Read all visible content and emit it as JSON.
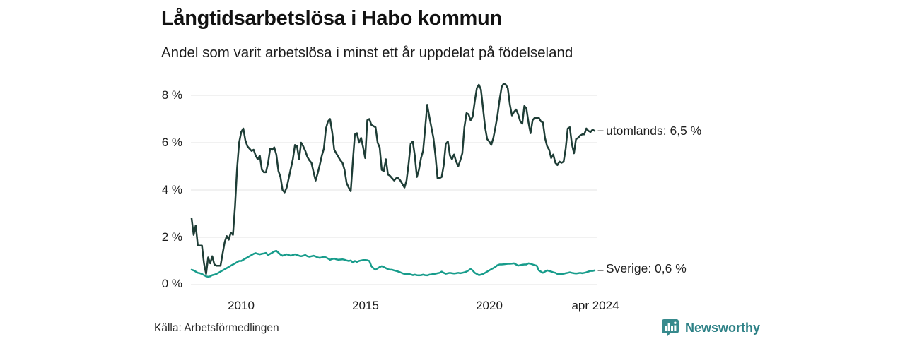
{
  "page": {
    "title": "Långtidsarbetslösa i Habo kommun",
    "subtitle": "Andel som varit arbetslösa i minst ett år uppdelat på födelseland",
    "source": "Källa: Arbetsförmedlingen",
    "brand": {
      "name": "Newsworthy",
      "icon": "newsworthy-speech-bubble-bar-chart",
      "icon_color": "#378a8d",
      "text_color": "#2d8186"
    }
  },
  "chart_data": {
    "type": "line",
    "title": "Långtidsarbetslösa i Habo kommun",
    "subtitle": "Andel som varit arbetslösa i minst ett år uppdelat på födelseland",
    "x_unit": "month",
    "x_start": "2008-01",
    "x_end": "2024-04",
    "ylim": [
      0,
      8.6
    ],
    "grid": "horizontal-only",
    "grid_color": "#e3e3e3",
    "legend_position": "end-of-line-labels",
    "y_tick_values": [
      0,
      2,
      4,
      6,
      8
    ],
    "y_tick_labels": [
      "0 %",
      "2 %",
      "4 %",
      "6 %",
      "8 %"
    ],
    "x_ticks": [
      {
        "label": "2010",
        "month_index": 24
      },
      {
        "label": "2015",
        "month_index": 84
      },
      {
        "label": "2020",
        "month_index": 144
      },
      {
        "label": "apr 2024",
        "month_index": 195
      }
    ],
    "series": [
      {
        "name": "utomlands",
        "label": "utomlands: 6,5 %",
        "latest_value": 6.5,
        "color": "#1e3d36",
        "values": [
          2.8,
          2.1,
          2.5,
          1.65,
          1.65,
          1.65,
          0.9,
          0.45,
          1.15,
          0.9,
          1.2,
          0.85,
          0.8,
          0.8,
          0.8,
          1.3,
          1.8,
          2.05,
          1.9,
          2.2,
          2.1,
          3.3,
          4.9,
          6.0,
          6.45,
          6.6,
          6.1,
          5.85,
          5.75,
          5.65,
          5.7,
          5.45,
          5.3,
          5.45,
          4.85,
          4.75,
          4.75,
          5.15,
          5.75,
          5.7,
          5.8,
          5.5,
          4.8,
          4.55,
          4.0,
          3.9,
          4.1,
          4.5,
          4.9,
          5.3,
          5.9,
          5.85,
          5.3,
          6.0,
          5.85,
          5.65,
          5.4,
          5.25,
          5.15,
          4.75,
          4.4,
          4.7,
          5.05,
          5.45,
          5.75,
          6.6,
          6.9,
          7.0,
          6.45,
          5.7,
          5.55,
          5.4,
          5.25,
          5.15,
          4.85,
          4.3,
          4.1,
          3.95,
          5.2,
          6.35,
          6.4,
          6.0,
          6.2,
          5.8,
          5.35,
          6.95,
          7.0,
          6.75,
          6.7,
          6.65,
          6.0,
          5.8,
          4.85,
          4.8,
          5.3,
          4.65,
          4.6,
          4.5,
          4.4,
          4.5,
          4.5,
          4.4,
          4.25,
          4.1,
          4.4,
          5.1,
          5.95,
          6.05,
          5.45,
          4.55,
          4.85,
          5.35,
          5.65,
          6.6,
          7.6,
          7.1,
          6.65,
          6.2,
          5.45,
          4.5,
          4.5,
          4.55,
          5.05,
          5.95,
          6.05,
          5.45,
          5.3,
          5.5,
          5.2,
          5.0,
          5.25,
          5.55,
          6.65,
          7.25,
          7.2,
          6.95,
          7.1,
          7.75,
          8.3,
          8.45,
          8.25,
          7.45,
          6.65,
          6.15,
          6.05,
          5.9,
          6.2,
          6.65,
          7.15,
          7.8,
          8.35,
          8.5,
          8.45,
          8.3,
          7.6,
          7.15,
          7.3,
          7.4,
          7.2,
          6.9,
          6.8,
          7.55,
          7.45,
          6.85,
          6.4,
          6.95,
          7.05,
          7.05,
          7.05,
          6.9,
          6.85,
          6.2,
          5.85,
          5.7,
          5.35,
          5.5,
          5.15,
          5.05,
          5.2,
          5.15,
          5.2,
          5.75,
          6.6,
          6.65,
          5.95,
          5.55,
          6.15,
          6.2,
          6.3,
          6.35,
          6.35,
          6.6,
          6.5,
          6.45,
          6.55,
          6.5
        ]
      },
      {
        "name": "Sverige",
        "label": "Sverige: 0,6 %",
        "latest_value": 0.6,
        "color": "#179c8b",
        "values": [
          0.63,
          0.6,
          0.55,
          0.5,
          0.48,
          0.45,
          0.4,
          0.35,
          0.33,
          0.35,
          0.4,
          0.42,
          0.45,
          0.5,
          0.55,
          0.6,
          0.65,
          0.7,
          0.75,
          0.8,
          0.85,
          0.9,
          0.95,
          1.0,
          1.0,
          1.05,
          1.1,
          1.15,
          1.2,
          1.25,
          1.3,
          1.33,
          1.3,
          1.28,
          1.3,
          1.32,
          1.34,
          1.25,
          1.3,
          1.35,
          1.4,
          1.43,
          1.35,
          1.27,
          1.22,
          1.25,
          1.28,
          1.25,
          1.22,
          1.25,
          1.28,
          1.25,
          1.22,
          1.2,
          1.22,
          1.25,
          1.2,
          1.18,
          1.2,
          1.22,
          1.19,
          1.15,
          1.13,
          1.15,
          1.18,
          1.15,
          1.1,
          1.05,
          1.08,
          1.1,
          1.07,
          1.05,
          1.06,
          1.07,
          1.05,
          1.02,
          1.0,
          1.02,
          0.93,
          1.0,
          0.96,
          1.0,
          1.02,
          1.04,
          1.04,
          1.03,
          1.0,
          0.78,
          0.69,
          0.63,
          0.69,
          0.74,
          0.78,
          0.74,
          0.7,
          0.65,
          0.63,
          0.63,
          0.6,
          0.58,
          0.55,
          0.52,
          0.48,
          0.45,
          0.45,
          0.45,
          0.43,
          0.4,
          0.42,
          0.4,
          0.39,
          0.4,
          0.42,
          0.4,
          0.39,
          0.42,
          0.43,
          0.45,
          0.46,
          0.48,
          0.5,
          0.55,
          0.5,
          0.46,
          0.48,
          0.5,
          0.48,
          0.47,
          0.48,
          0.5,
          0.48,
          0.5,
          0.52,
          0.55,
          0.6,
          0.66,
          0.6,
          0.5,
          0.45,
          0.4,
          0.42,
          0.45,
          0.5,
          0.55,
          0.6,
          0.65,
          0.7,
          0.75,
          0.82,
          0.85,
          0.85,
          0.86,
          0.87,
          0.88,
          0.88,
          0.89,
          0.9,
          0.85,
          0.8,
          0.82,
          0.84,
          0.85,
          0.85,
          0.9,
          0.88,
          0.85,
          0.82,
          0.8,
          0.6,
          0.55,
          0.5,
          0.55,
          0.6,
          0.58,
          0.55,
          0.52,
          0.5,
          0.45,
          0.45,
          0.45,
          0.46,
          0.48,
          0.5,
          0.52,
          0.5,
          0.48,
          0.47,
          0.48,
          0.5,
          0.48,
          0.5,
          0.52,
          0.55,
          0.58,
          0.58,
          0.6
        ]
      }
    ]
  }
}
